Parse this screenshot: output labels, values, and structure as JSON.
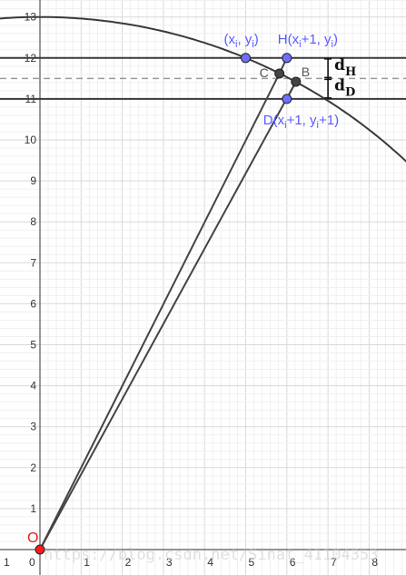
{
  "chart_data": {
    "type": "geometry-diagram",
    "x_range": [
      -1,
      8.5
    ],
    "y_range": [
      0,
      13
    ],
    "x_ticks": [
      "1",
      "0",
      "1",
      "2",
      "3",
      "4",
      "5",
      "6",
      "7",
      "8"
    ],
    "y_ticks": [
      "1",
      "2",
      "3",
      "4",
      "5",
      "6",
      "7",
      "8",
      "9",
      "10",
      "11",
      "12",
      "13"
    ],
    "grid": true,
    "curve": {
      "kind": "circle-arc",
      "radius": 13
    },
    "horizontal_lines": [
      {
        "y": 12,
        "style": "solid"
      },
      {
        "y": 11.5,
        "style": "dashed"
      },
      {
        "y": 11,
        "style": "solid"
      }
    ],
    "points": [
      {
        "id": "O",
        "label": "O",
        "x": 0,
        "y": 0,
        "color": "#ff1a1a"
      },
      {
        "id": "P",
        "label": "(x",
        "sub": "i",
        "label_tail": ", y",
        "sub2": "i",
        "label_end": ")",
        "x": 5,
        "y": 12,
        "color": "#6f6fff"
      },
      {
        "id": "H",
        "label": "H(x",
        "sub": "i",
        "label_tail": "+1, y",
        "sub2": "i",
        "label_end": ")",
        "x": 6,
        "y": 12,
        "color": "#6f6fff"
      },
      {
        "id": "D",
        "label": "D(x",
        "sub": "i",
        "label_tail": "+1, y",
        "sub2": "i",
        "label_end": "+1)",
        "x": 6,
        "y": 11,
        "color": "#6f6fff"
      },
      {
        "id": "C",
        "label": "C",
        "x": 5.82,
        "y": 11.62,
        "color": "#444444"
      },
      {
        "id": "B",
        "label": "B",
        "x": 6.22,
        "y": 11.42,
        "color": "#444444"
      }
    ],
    "segments": [
      {
        "from": "O",
        "to": "C"
      },
      {
        "from": "O",
        "to": "B"
      },
      {
        "from": "C",
        "to": "H"
      },
      {
        "from": "B",
        "to": "D"
      }
    ],
    "distances": [
      {
        "label": "d",
        "sub": "H",
        "from_y": 12,
        "to_y": 11.5
      },
      {
        "label": "d",
        "sub": "D",
        "from_y": 11.5,
        "to_y": 11
      }
    ],
    "watermark": "https://blog.csdn.net/Sinat_41104353"
  }
}
